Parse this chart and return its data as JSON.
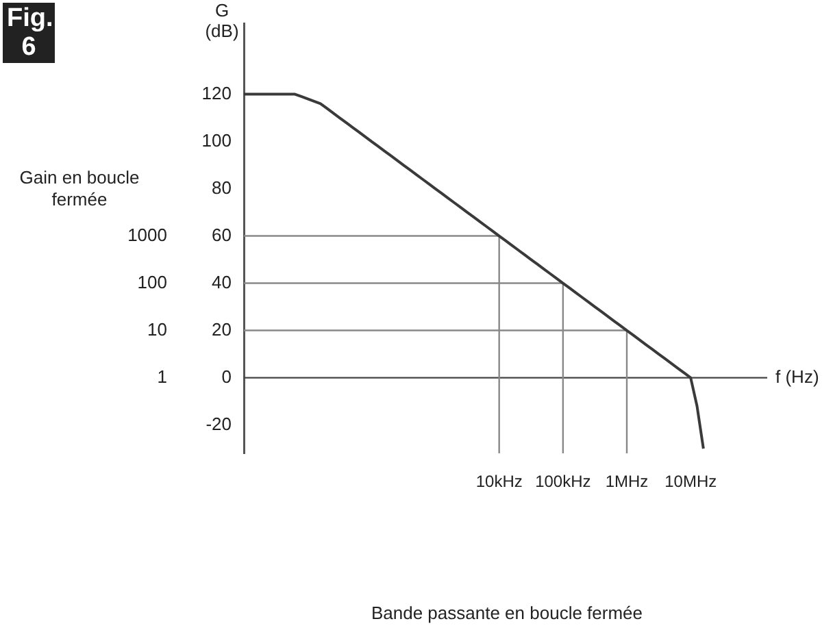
{
  "chart_data": {
    "type": "line",
    "title": "Fig. 6",
    "ylabel": "G (dB)",
    "xlabel": "f (Hz)",
    "categories": [
      null,
      null,
      null,
      null,
      null,
      null,
      null,
      null,
      null,
      null,
      null,
      null,
      null,
      null,
      null,
      null,
      null,
      null,
      null,
      null,
      null,
      null,
      null,
      null,
      null,
      null,
      null,
      null,
      null,
      null,
      null,
      null,
      null,
      null,
      null,
      null,
      null,
      null,
      null,
      null,
      "10kHz",
      null,
      null,
      null,
      null,
      null,
      null,
      null,
      null,
      null,
      "100kHz",
      null,
      null,
      null,
      null,
      null,
      null,
      null,
      null,
      null,
      "1MHz",
      null,
      null,
      null,
      null,
      null,
      null,
      null,
      null,
      null,
      "10MHz",
      null,
      null,
      null,
      null,
      null,
      null,
      null,
      null,
      null,
      null,
      null,
      null
    ],
    "ylim": [
      -32,
      150
    ],
    "yticks": [
      -20,
      0,
      20,
      40,
      60,
      80,
      100,
      120
    ],
    "grid": false,
    "legend": false,
    "marker": "none",
    "line_style": "solid",
    "annotations": [
      "Gain en boucle fermée",
      "Bande passante en boucle fermée",
      "1",
      "10",
      "100",
      "1000"
    ],
    "ref_lines": [
      {
        "axis": "y",
        "value": 0,
        "color": "#444444"
      },
      {
        "axis": "y",
        "value": 20,
        "color": "#888888"
      },
      {
        "axis": "y",
        "value": 40,
        "color": "#888888"
      },
      {
        "axis": "y",
        "value": 60,
        "color": "#888888"
      },
      {
        "axis": "x",
        "value": "10kHz",
        "color": "#888888"
      },
      {
        "axis": "x",
        "value": "100kHz",
        "color": "#888888"
      },
      {
        "axis": "x",
        "value": "1MHz",
        "color": "#888888"
      }
    ],
    "series": [
      {
        "color": "#3a3a3a",
        "values": [
          120,
          120,
          120,
          120,
          120,
          120,
          120,
          120,
          120,
          119,
          118,
          117,
          116,
          114,
          112,
          110,
          108,
          106,
          104,
          102,
          100,
          98,
          96,
          94,
          92,
          90,
          88,
          86,
          84,
          82,
          80,
          78,
          76,
          74,
          72,
          70,
          68,
          66,
          64,
          62,
          60,
          58,
          56,
          54,
          52,
          50,
          48,
          46,
          44,
          42,
          40,
          38,
          36,
          34,
          32,
          30,
          28,
          26,
          24,
          22,
          20,
          18,
          16,
          14,
          12,
          10,
          8,
          6,
          4,
          2,
          0,
          -12,
          -30,
          null,
          null,
          null,
          null,
          null,
          null,
          null,
          null,
          null,
          null
        ]
      }
    ]
  }
}
